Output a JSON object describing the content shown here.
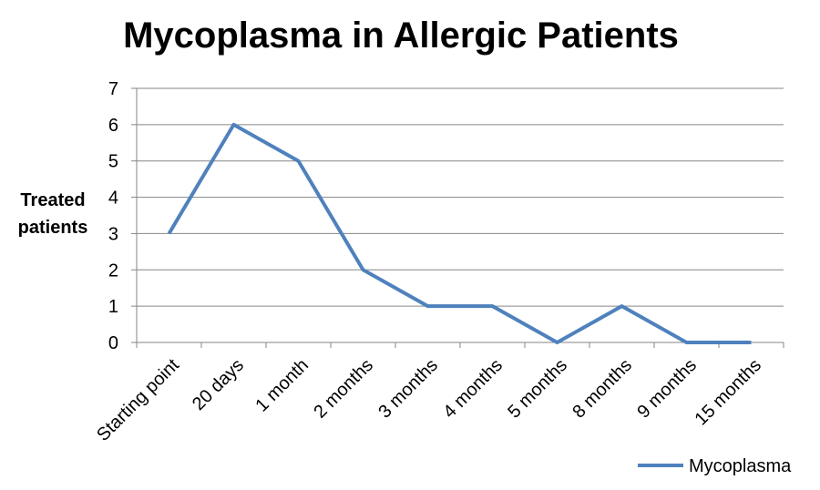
{
  "chart_data": {
    "type": "line",
    "title": "Mycoplasma in Allergic Patients",
    "y_label": "Treated patients",
    "categories": [
      "Starting point",
      "20 days",
      "1 month",
      "2 months",
      "3 months",
      "4 months",
      "5 months",
      "8 months",
      "9 months",
      "15 months"
    ],
    "series": [
      {
        "name": "Mycoplasma",
        "color": "#4f81bd",
        "values": [
          3,
          6,
          5,
          2,
          1,
          1,
          0,
          1,
          0,
          0
        ]
      }
    ],
    "ylim": [
      0,
      7
    ],
    "yticks": [
      0,
      1,
      2,
      3,
      4,
      5,
      6,
      7
    ],
    "grid": true,
    "legend": "bottom-right"
  }
}
